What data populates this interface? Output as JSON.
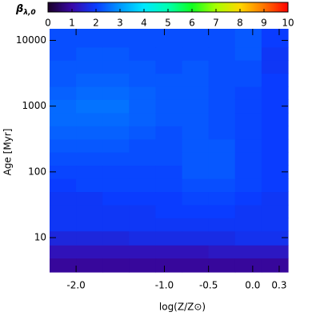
{
  "chart_data": {
    "type": "heatmap",
    "xlabel": "log(Z/Z⊙)",
    "ylabel": "Age [Myr]",
    "colorbar_label": "β",
    "colorbar_label_sub": "λ,0",
    "xlim": [
      -2.3,
      0.4
    ],
    "ylim": [
      3,
      15000
    ],
    "ylog": true,
    "xticks": [
      {
        "value": -2,
        "label": "-2.0"
      },
      {
        "value": -1,
        "label": "-1.0"
      },
      -0.5,
      {
        "value": 0,
        "label": "0.0"
      },
      0.3
    ],
    "yticks": [
      10,
      100,
      1000,
      10000
    ],
    "clim": [
      0,
      10
    ],
    "cticks": [
      0,
      1,
      2,
      3,
      4,
      5,
      6,
      7,
      8,
      9,
      10
    ],
    "colormap": [
      "#1a0028",
      "#3a08a8",
      "#0a3cff",
      "#0098ff",
      "#00e8ff",
      "#00ffb0",
      "#10ff20",
      "#a8ff00",
      "#ffd800",
      "#ff7400",
      "#ff0000"
    ],
    "x": [
      -2.15,
      -1.85,
      -1.55,
      -1.25,
      -0.95,
      -0.65,
      -0.35,
      -0.05,
      0.25
    ],
    "y": [
      4,
      6,
      10,
      16,
      25,
      40,
      63,
      100,
      160,
      250,
      400,
      630,
      1000,
      1600,
      2500,
      4000,
      6300,
      10000
    ],
    "z": [
      [
        0.9,
        0.9,
        0.9,
        0.9,
        0.9,
        0.9,
        0.9,
        0.9,
        0.9
      ],
      [
        1.2,
        1.2,
        1.2,
        1.2,
        1.2,
        1.2,
        1.3,
        1.3,
        1.3
      ],
      [
        1.6,
        1.6,
        1.6,
        1.7,
        1.7,
        1.7,
        1.7,
        1.8,
        1.8
      ],
      [
        1.9,
        1.9,
        1.9,
        1.9,
        1.9,
        1.9,
        1.9,
        1.9,
        1.9
      ],
      [
        1.9,
        1.9,
        1.9,
        1.9,
        2.0,
        2.0,
        2.0,
        1.9,
        1.9
      ],
      [
        1.9,
        1.9,
        2.0,
        2.0,
        2.0,
        2.1,
        2.1,
        2.0,
        1.9
      ],
      [
        2.0,
        2.1,
        2.1,
        2.1,
        2.1,
        2.2,
        2.2,
        2.1,
        2.0
      ],
      [
        2.1,
        2.1,
        2.1,
        2.1,
        2.1,
        2.3,
        2.3,
        2.1,
        2.0
      ],
      [
        2.2,
        2.2,
        2.2,
        2.2,
        2.2,
        2.3,
        2.3,
        2.1,
        2.0
      ],
      [
        2.3,
        2.3,
        2.3,
        2.2,
        2.2,
        2.3,
        2.3,
        2.1,
        2.0
      ],
      [
        2.4,
        2.4,
        2.4,
        2.3,
        2.2,
        2.3,
        2.2,
        2.1,
        2.0
      ],
      [
        2.5,
        2.5,
        2.5,
        2.4,
        2.3,
        2.3,
        2.2,
        2.1,
        2.0
      ],
      [
        2.5,
        2.6,
        2.6,
        2.4,
        2.3,
        2.3,
        2.2,
        2.1,
        2.0
      ],
      [
        2.4,
        2.5,
        2.5,
        2.4,
        2.3,
        2.3,
        2.2,
        2.1,
        2.0
      ],
      [
        2.3,
        2.4,
        2.4,
        2.3,
        2.3,
        2.3,
        2.2,
        2.2,
        2.0
      ],
      [
        2.3,
        2.3,
        2.3,
        2.3,
        2.2,
        2.3,
        2.2,
        2.2,
        1.9
      ],
      [
        2.2,
        2.3,
        2.3,
        2.2,
        2.2,
        2.2,
        2.2,
        2.3,
        1.9
      ],
      [
        2.2,
        2.2,
        2.2,
        2.2,
        2.2,
        2.2,
        2.2,
        2.3,
        2.0
      ]
    ]
  }
}
